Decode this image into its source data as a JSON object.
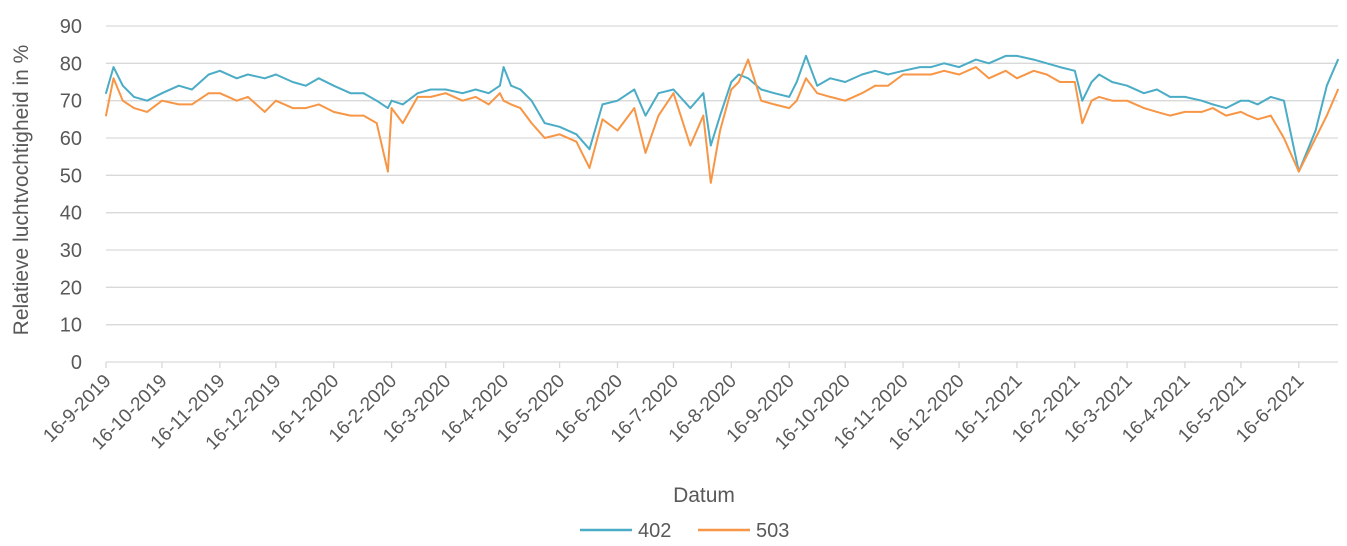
{
  "chart_data": {
    "type": "line",
    "title": "",
    "xlabel": "Datum",
    "ylabel": "Relatieve luchtvochtigheid in %",
    "ylim": [
      0,
      90
    ],
    "yticks": [
      0,
      10,
      20,
      30,
      40,
      50,
      60,
      70,
      80,
      90
    ],
    "grid": true,
    "legend_position": "bottom",
    "colors": {
      "402": "#4bacc6",
      "503": "#f79646",
      "grid": "#d9d9d9",
      "text": "#595959"
    },
    "x_tick_labels": [
      "16-9-2019",
      "16-10-2019",
      "16-11-2019",
      "16-12-2019",
      "16-1-2020",
      "16-2-2020",
      "16-3-2020",
      "16-4-2020",
      "16-5-2020",
      "16-6-2020",
      "16-7-2020",
      "16-8-2020",
      "16-9-2020",
      "16-10-2020",
      "16-11-2020",
      "16-12-2020",
      "16-1-2021",
      "16-2-2021",
      "16-3-2021",
      "16-4-2021",
      "16-5-2021",
      "16-6-2021"
    ],
    "x_start": "16-9-2019",
    "x_end": "7-7-2021",
    "series": [
      {
        "name": "402",
        "x": [
          "16-9-2019",
          "20-9-2019",
          "25-9-2019",
          "1-10-2019",
          "8-10-2019",
          "16-10-2019",
          "25-10-2019",
          "1-11-2019",
          "10-11-2019",
          "16-11-2019",
          "25-11-2019",
          "1-12-2019",
          "10-12-2019",
          "16-12-2019",
          "25-12-2019",
          "1-1-2020",
          "8-1-2020",
          "16-1-2020",
          "25-1-2020",
          "1-2-2020",
          "8-2-2020",
          "14-2-2020",
          "16-2-2020",
          "22-2-2020",
          "1-3-2020",
          "8-3-2020",
          "16-3-2020",
          "25-3-2020",
          "1-4-2020",
          "8-4-2020",
          "14-4-2020",
          "16-4-2020",
          "20-4-2020",
          "25-4-2020",
          "1-5-2020",
          "8-5-2020",
          "16-5-2020",
          "25-5-2020",
          "1-6-2020",
          "8-6-2020",
          "16-6-2020",
          "25-6-2020",
          "1-7-2020",
          "8-7-2020",
          "16-7-2020",
          "25-7-2020",
          "1-8-2020",
          "5-8-2020",
          "10-8-2020",
          "16-8-2020",
          "20-8-2020",
          "25-8-2020",
          "1-9-2020",
          "8-9-2020",
          "16-9-2020",
          "20-9-2020",
          "25-9-2020",
          "1-10-2020",
          "8-10-2020",
          "16-10-2020",
          "25-10-2020",
          "1-11-2020",
          "8-11-2020",
          "16-11-2020",
          "25-11-2020",
          "1-12-2020",
          "8-12-2020",
          "16-12-2020",
          "25-12-2020",
          "1-1-2021",
          "10-1-2021",
          "16-1-2021",
          "25-1-2021",
          "1-2-2021",
          "8-2-2021",
          "16-2-2021",
          "20-2-2021",
          "25-2-2021",
          "1-3-2021",
          "8-3-2021",
          "16-3-2021",
          "25-3-2021",
          "1-4-2021",
          "8-4-2021",
          "16-4-2021",
          "25-4-2021",
          "1-5-2021",
          "8-5-2021",
          "16-5-2021",
          "20-5-2021",
          "25-5-2021",
          "1-6-2021",
          "8-6-2021",
          "16-6-2021",
          "25-6-2021",
          "1-7-2021",
          "7-7-2021"
        ],
        "values": [
          72,
          79,
          74,
          71,
          70,
          72,
          74,
          73,
          77,
          78,
          76,
          77,
          76,
          77,
          75,
          74,
          76,
          74,
          72,
          72,
          70,
          68,
          70,
          69,
          72,
          73,
          73,
          72,
          73,
          72,
          74,
          79,
          74,
          73,
          70,
          64,
          63,
          61,
          57,
          69,
          70,
          73,
          66,
          72,
          73,
          68,
          72,
          58,
          66,
          75,
          77,
          76,
          73,
          72,
          71,
          75,
          82,
          74,
          76,
          75,
          77,
          78,
          77,
          78,
          79,
          79,
          80,
          79,
          81,
          80,
          82,
          82,
          81,
          80,
          79,
          78,
          70,
          75,
          77,
          75,
          74,
          72,
          73,
          71,
          71,
          70,
          69,
          68,
          70,
          70,
          69,
          71,
          70,
          51,
          62,
          74,
          81
        ]
      },
      {
        "name": "503",
        "x": [
          "16-9-2019",
          "20-9-2019",
          "25-9-2019",
          "1-10-2019",
          "8-10-2019",
          "16-10-2019",
          "25-10-2019",
          "1-11-2019",
          "10-11-2019",
          "16-11-2019",
          "25-11-2019",
          "1-12-2019",
          "10-12-2019",
          "16-12-2019",
          "25-12-2019",
          "1-1-2020",
          "8-1-2020",
          "16-1-2020",
          "25-1-2020",
          "1-2-2020",
          "8-2-2020",
          "14-2-2020",
          "16-2-2020",
          "22-2-2020",
          "1-3-2020",
          "8-3-2020",
          "16-3-2020",
          "25-3-2020",
          "1-4-2020",
          "8-4-2020",
          "14-4-2020",
          "16-4-2020",
          "20-4-2020",
          "25-4-2020",
          "1-5-2020",
          "8-5-2020",
          "16-5-2020",
          "25-5-2020",
          "1-6-2020",
          "8-6-2020",
          "16-6-2020",
          "25-6-2020",
          "1-7-2020",
          "8-7-2020",
          "16-7-2020",
          "25-7-2020",
          "1-8-2020",
          "5-8-2020",
          "10-8-2020",
          "16-8-2020",
          "20-8-2020",
          "25-8-2020",
          "1-9-2020",
          "8-9-2020",
          "16-9-2020",
          "20-9-2020",
          "25-9-2020",
          "1-10-2020",
          "8-10-2020",
          "16-10-2020",
          "25-10-2020",
          "1-11-2020",
          "8-11-2020",
          "16-11-2020",
          "25-11-2020",
          "1-12-2020",
          "8-12-2020",
          "16-12-2020",
          "25-12-2020",
          "1-1-2021",
          "10-1-2021",
          "16-1-2021",
          "25-1-2021",
          "1-2-2021",
          "8-2-2021",
          "16-2-2021",
          "20-2-2021",
          "25-2-2021",
          "1-3-2021",
          "8-3-2021",
          "16-3-2021",
          "25-3-2021",
          "1-4-2021",
          "8-4-2021",
          "16-4-2021",
          "25-4-2021",
          "1-5-2021",
          "8-5-2021",
          "16-5-2021",
          "20-5-2021",
          "25-5-2021",
          "1-6-2021",
          "8-6-2021",
          "16-6-2021",
          "25-6-2021",
          "1-7-2021",
          "7-7-2021"
        ],
        "values": [
          66,
          76,
          70,
          68,
          67,
          70,
          69,
          69,
          72,
          72,
          70,
          71,
          67,
          70,
          68,
          68,
          69,
          67,
          66,
          66,
          64,
          51,
          68,
          64,
          71,
          71,
          72,
          70,
          71,
          69,
          72,
          70,
          69,
          68,
          64,
          60,
          61,
          59,
          52,
          65,
          62,
          68,
          56,
          66,
          72,
          58,
          66,
          48,
          62,
          73,
          75,
          81,
          70,
          69,
          68,
          70,
          76,
          72,
          71,
          70,
          72,
          74,
          74,
          77,
          77,
          77,
          78,
          77,
          79,
          76,
          78,
          76,
          78,
          77,
          75,
          75,
          64,
          70,
          71,
          70,
          70,
          68,
          67,
          66,
          67,
          67,
          68,
          66,
          67,
          66,
          65,
          66,
          60,
          51,
          60,
          66,
          73
        ]
      }
    ]
  }
}
